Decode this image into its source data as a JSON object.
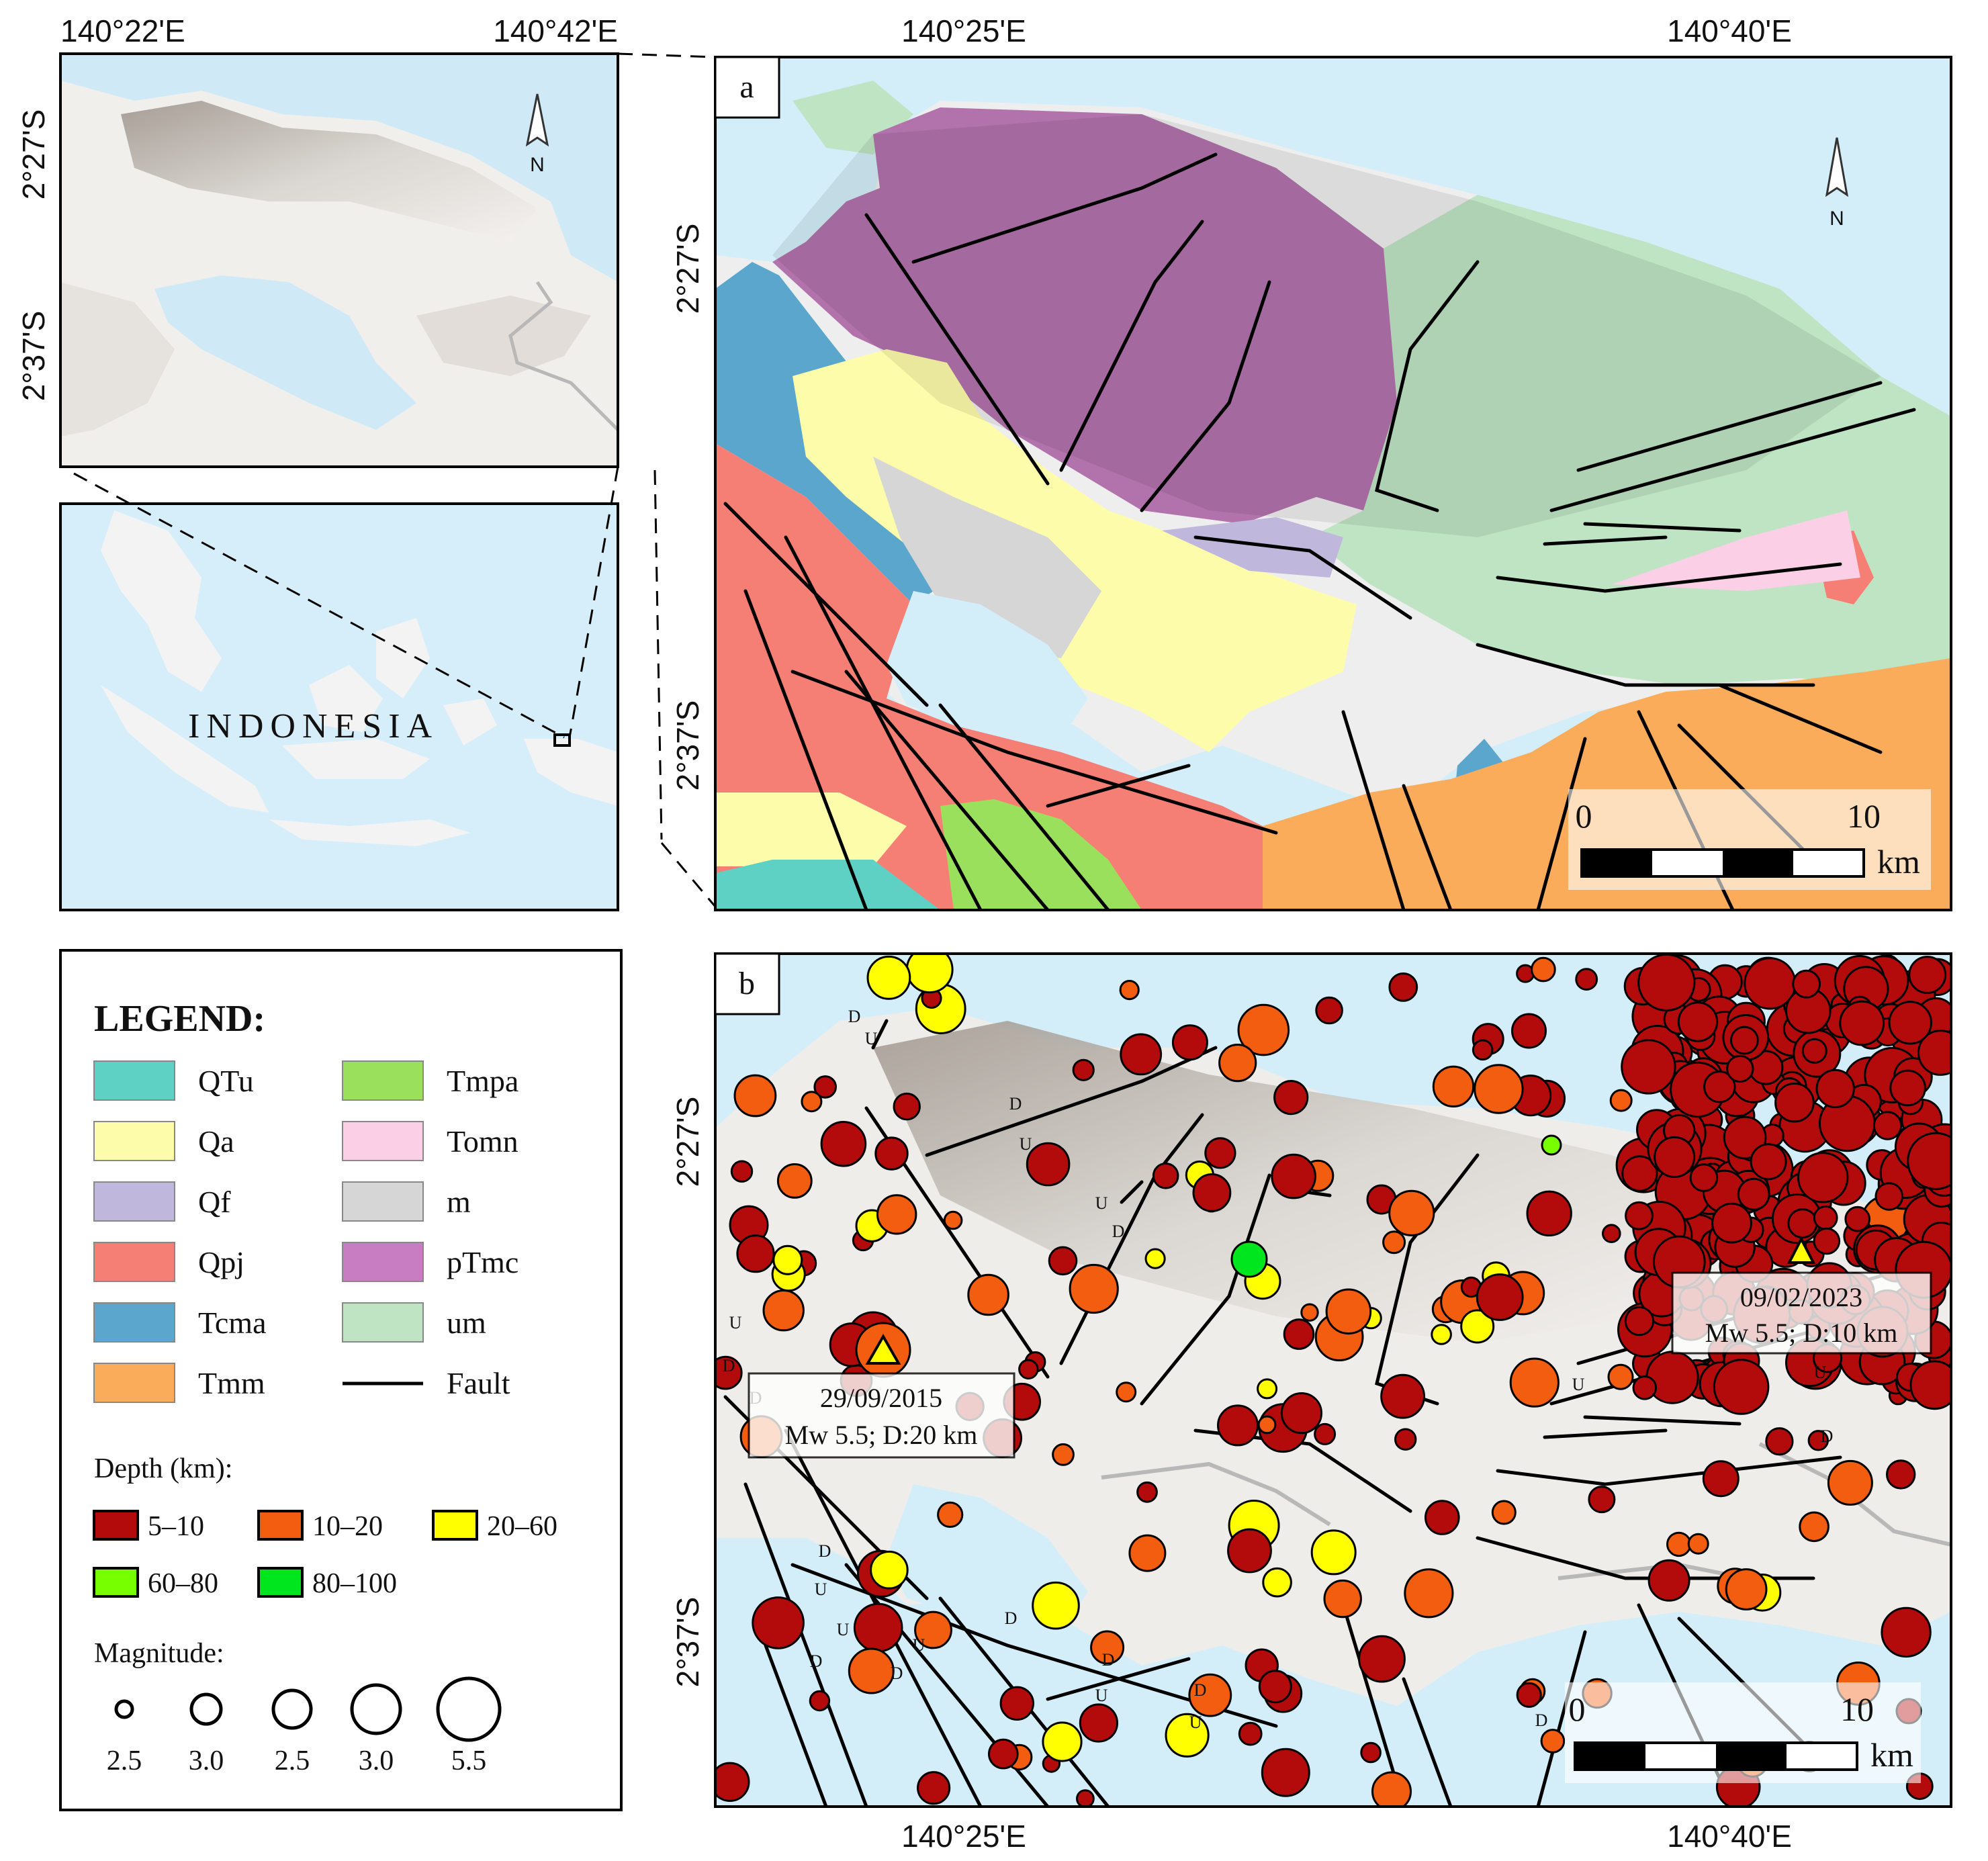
{
  "inset_top": {
    "lon_labels": [
      "140°22'E",
      "140°42'E"
    ],
    "lat_labels": [
      "2°27'S",
      "2°37'S"
    ],
    "north": "N"
  },
  "inset_bottom": {
    "country_label": "INDONESIA"
  },
  "panel_a": {
    "label": "a",
    "lon_labels": [
      "140°25'E",
      "140°40'E"
    ],
    "lat_labels": [
      "2°27'S",
      "2°37'S"
    ],
    "north": "N",
    "scale": {
      "start": "0",
      "end": "10",
      "unit": "km"
    }
  },
  "panel_b": {
    "label": "b",
    "lon_labels": [
      "140°25'E",
      "140°40'E"
    ],
    "lat_labels": [
      "2°27'S",
      "2°37'S"
    ],
    "scale": {
      "start": "0",
      "end": "10",
      "unit": "km"
    },
    "events": [
      {
        "date": "09/02/2023",
        "info": "Mw 5.5; D:10 km"
      },
      {
        "date": "29/09/2015",
        "info": "Mw 5.5; D:20 km"
      }
    ],
    "fault_marks": [
      "D",
      "U",
      "D",
      "U",
      "U",
      "D",
      "U",
      "D",
      "D",
      "U",
      "D",
      "U",
      "D",
      "U",
      "D",
      "D",
      "U",
      "D",
      "U",
      "D",
      "U",
      "D",
      "U",
      "D"
    ]
  },
  "legend": {
    "title": "LEGEND:",
    "units": [
      {
        "code": "QTu",
        "color": "#5ed1c4"
      },
      {
        "code": "Tmpa",
        "color": "#9be05c"
      },
      {
        "code": "Qa",
        "color": "#fdfcab"
      },
      {
        "code": "Tomn",
        "color": "#fbcfe6"
      },
      {
        "code": "Qf",
        "color": "#bfb8dc"
      },
      {
        "code": "m",
        "color": "#d6d6d6"
      },
      {
        "code": "Qpj",
        "color": "#f57f74"
      },
      {
        "code": "pTmc",
        "color": "#c87cc2"
      },
      {
        "code": "Tcma",
        "color": "#5aa6cc"
      },
      {
        "code": "um",
        "color": "#bfe4c4"
      },
      {
        "code": "Tmm",
        "color": "#fbac5a"
      },
      {
        "code": "Fault",
        "color": "#000000"
      }
    ],
    "depth_title": "Depth (km):",
    "depth": [
      {
        "label": "5–10",
        "color": "#b30b0b"
      },
      {
        "label": "10–20",
        "color": "#f35d0f"
      },
      {
        "label": "20–60",
        "color": "#ffff00"
      },
      {
        "label": "60–80",
        "color": "#77ff00"
      },
      {
        "label": "80–100",
        "color": "#00e61e"
      }
    ],
    "magnitude_title": "Magnitude:",
    "magnitudes": [
      "2.5",
      "3.0",
      "2.5",
      "3.0",
      "5.5"
    ]
  }
}
